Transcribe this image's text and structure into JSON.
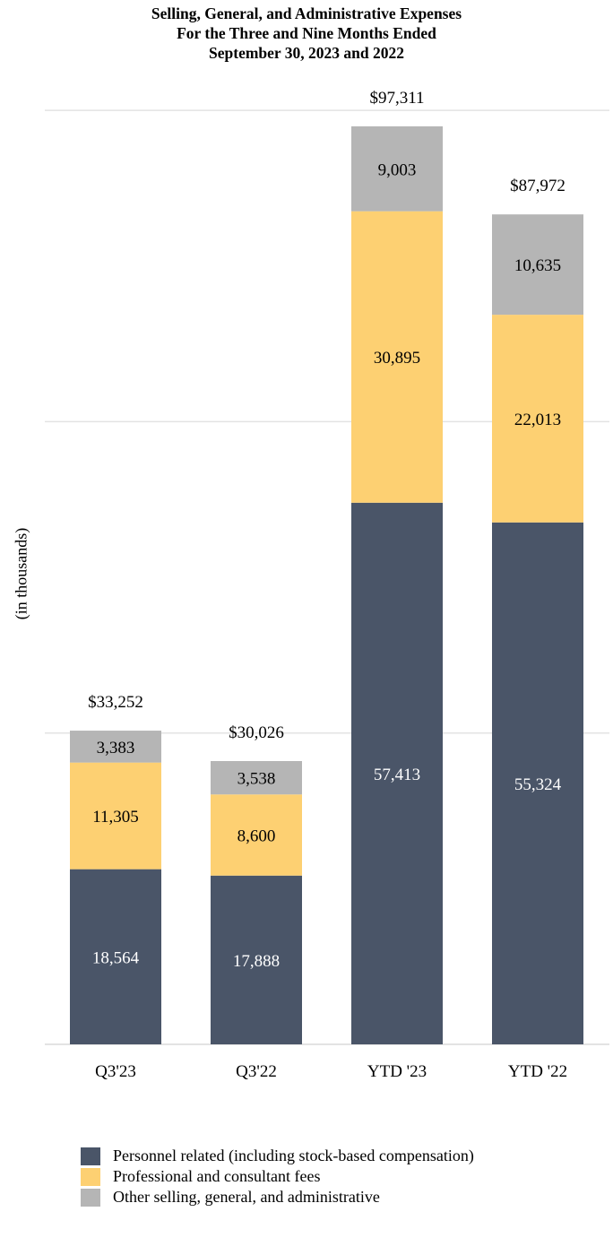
{
  "chart_data": {
    "type": "bar",
    "stacked": true,
    "title_lines": [
      "Selling, General, and Administrative Expenses",
      "For the Three and Nine Months Ended",
      "September 30, 2023 and 2022"
    ],
    "ylabel": "(in thousands)",
    "xlabel": "",
    "ylim": [
      0,
      100000
    ],
    "categories": [
      "Q3'23",
      "Q3'22",
      "YTD '23",
      "YTD '22"
    ],
    "totals": [
      "$33,252",
      "$30,026",
      "$97,311",
      "$87,972"
    ],
    "series": [
      {
        "name": "Personnel related (including stock-based compensation)",
        "color": "#4a5568",
        "label_color": "#ffffff",
        "values": [
          18564,
          17888,
          57413,
          55324
        ],
        "labels": [
          "18,564",
          "17,888",
          "57,413",
          "55,324"
        ]
      },
      {
        "name": "Professional and consultant fees",
        "color": "#fdd072",
        "label_color": "#000000",
        "values": [
          11305,
          8600,
          30895,
          22013
        ],
        "labels": [
          "11,305",
          "8,600",
          "30,895",
          "22,013"
        ]
      },
      {
        "name": "Other selling, general, and administrative",
        "color": "#b5b5b5",
        "label_color": "#000000",
        "values": [
          3383,
          3538,
          9003,
          10635
        ],
        "labels": [
          "3,383",
          "3,538",
          "9,003",
          "10,635"
        ]
      }
    ],
    "gridlines": [
      0,
      33000,
      66000,
      99000
    ],
    "legend_position": "bottom-left"
  }
}
